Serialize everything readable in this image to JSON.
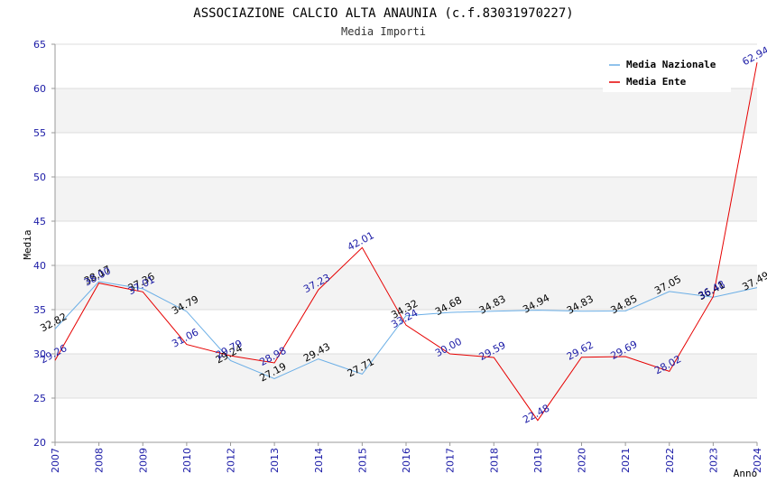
{
  "chart_data": {
    "type": "line",
    "title": "ASSOCIAZIONE CALCIO ALTA ANAUNIA (c.f.83031970227)",
    "subtitle": "Media Importi",
    "xlabel": "Anno",
    "ylabel": "Media",
    "ylim": [
      20,
      65
    ],
    "yticks": [
      20,
      25,
      30,
      35,
      40,
      45,
      50,
      55,
      60,
      65
    ],
    "categories": [
      "2007",
      "2008",
      "2009",
      "2010",
      "2012",
      "2013",
      "2014",
      "2015",
      "2016",
      "2017",
      "2018",
      "2019",
      "2020",
      "2021",
      "2022",
      "2023",
      "2024"
    ],
    "grid": "horizontal bands",
    "legend_position": "top-right",
    "series": [
      {
        "name": "Media Nazionale",
        "color": "#6aaee6",
        "values": [
          32.82,
          38.17,
          37.36,
          34.79,
          29.24,
          27.19,
          29.43,
          27.71,
          34.32,
          34.68,
          34.83,
          34.94,
          34.83,
          34.85,
          37.05,
          36.41,
          37.49
        ],
        "labels": [
          "32.82",
          "38.17",
          "37.36",
          "34.79",
          "29.24",
          "27.19",
          "29.43",
          "27.71",
          "34.32",
          "34.68",
          "34.83",
          "34.94",
          "34.83",
          "34.85",
          "37.05",
          "36.41",
          "37.49"
        ]
      },
      {
        "name": "Media Ente",
        "color": "#e60000",
        "values": [
          29.26,
          38.0,
          37.01,
          31.06,
          29.79,
          28.98,
          37.23,
          42.01,
          33.24,
          30.0,
          29.59,
          22.48,
          29.62,
          29.69,
          28.02,
          36.48,
          62.94
        ],
        "labels": [
          "29.26",
          "38.00",
          "37.01",
          "31.06",
          "29.79",
          "28.98",
          "37.23",
          "42.01",
          "33.24",
          "30.00",
          "29.59",
          "22.48",
          "29.62",
          "29.69",
          "28.02",
          "36.48",
          "62.94"
        ]
      }
    ]
  }
}
